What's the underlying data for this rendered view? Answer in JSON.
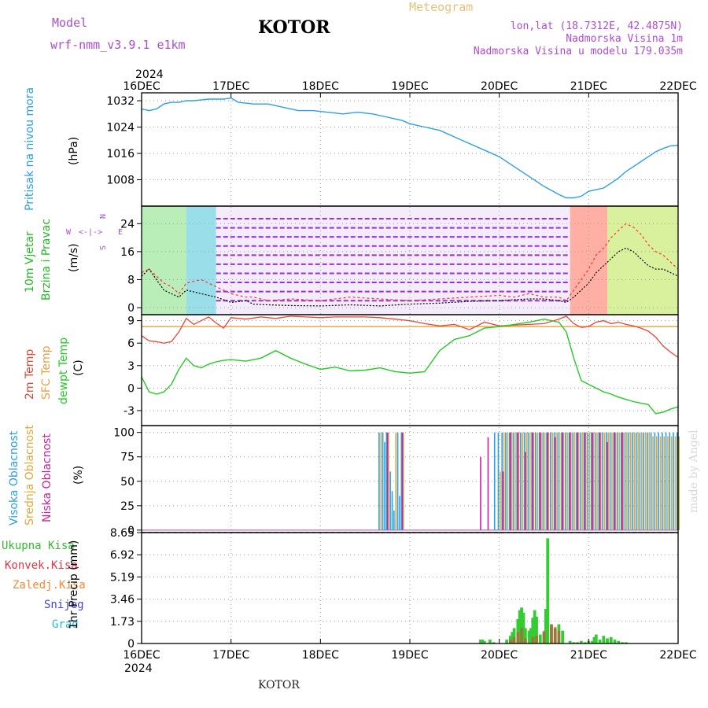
{
  "header": {
    "model_label": "Model",
    "model_name": "wrf-nmm_v3.9.1 e1km",
    "title": "KOTOR",
    "meteogram": "Meteogram",
    "lonlat": "lon,lat (18.7312E, 42.4875N)",
    "elevation": "Nadmorska Visina 1m",
    "model_elevation": "Nadmorska Visina u modelu 179.035m"
  },
  "footer": {
    "station": "KOTOR",
    "credit": "made by Angel"
  },
  "time_axis": {
    "year_top": "2024",
    "year_bottom": "2024",
    "labels": [
      "16DEC",
      "17DEC",
      "18DEC",
      "19DEC",
      "20DEC",
      "21DEC",
      "22DEC"
    ]
  },
  "panels": {
    "pressure": {
      "label": "Pritisak na nivou mora",
      "unit": "(hPa)"
    },
    "wind": {
      "label1": "10m Vjetar",
      "label2": "Brzina i Pravac",
      "unit": "(m/s)",
      "compass": {
        "n": "N",
        "s": "S",
        "e": "E",
        "w": "W"
      }
    },
    "temp": {
      "label1": "2m Temp",
      "label2": "SFC Temp",
      "label3": "dewpt Temp",
      "unit": "(C)"
    },
    "cloud": {
      "label1": "Visoka Oblacnost",
      "label2": "Srednja Oblacnost",
      "label3": "Niska Oblacnost",
      "unit": "(%)"
    },
    "precip": {
      "unit": "1hr Precip (mm)",
      "legend": [
        "Ukupna Kisa",
        "Konvek.Kisa",
        "Zaledj.Kisa",
        "Snijeg",
        "Grad"
      ]
    }
  },
  "colors": {
    "pressure": "#2aa0e8",
    "wind_speed": "#000000",
    "gust": "#ff3030",
    "temp2m": "#ee4433",
    "sfc": "#e8a040",
    "dewpt": "#22cc22",
    "high_cloud": "#2aa0e8",
    "mid_cloud": "#e0a838",
    "low_cloud": "#d020a0",
    "rain": "#33cc33",
    "conv": "#ee3344",
    "frz": "#ff8833",
    "snow": "#4444dd",
    "hail": "#22bbcc",
    "label_pressure": "#2aa0e8",
    "label_wind": "#22bb22",
    "purple": "#b04ad8"
  },
  "chart_data": [
    {
      "type": "line",
      "title": "Pritisak na nivou mora",
      "ylabel": "(hPa)",
      "yticks": [
        1008,
        1016,
        1024,
        1032
      ],
      "ylim": [
        1000,
        1034.4
      ],
      "xlim_hours": [
        0,
        144
      ],
      "series": [
        {
          "x": [
            0,
            2,
            4,
            6,
            8,
            10,
            12,
            14,
            18,
            22,
            24,
            26,
            30,
            34,
            38,
            42,
            46,
            50,
            54,
            58,
            62,
            66,
            70,
            72,
            76,
            80,
            84,
            88,
            92,
            96,
            100,
            104,
            108,
            112,
            114,
            116,
            118,
            120,
            122,
            124,
            126,
            128,
            130,
            132,
            134,
            136,
            138,
            140,
            142,
            144
          ],
          "y": [
            1029.5,
            1029,
            1029.5,
            1031,
            1031.5,
            1031.5,
            1032,
            1032,
            1032.5,
            1032.5,
            1032.8,
            1031.5,
            1031,
            1031,
            1030,
            1029,
            1029,
            1028.5,
            1028,
            1028.5,
            1028,
            1027,
            1026,
            1025,
            1024,
            1023,
            1021,
            1019,
            1017,
            1015,
            1012,
            1009,
            1006,
            1003.5,
            1002.5,
            1002.5,
            1003,
            1004.5,
            1005,
            1005.5,
            1007,
            1008.5,
            1010.5,
            1012,
            1013.5,
            1015,
            1016.5,
            1017.5,
            1018.3,
            1018.5
          ]
        }
      ]
    },
    {
      "type": "line",
      "title": "10m Vjetar Brzina i Pravac",
      "ylabel": "(m/s)",
      "yticks": [
        0,
        8,
        16,
        24
      ],
      "ylim": [
        -2,
        29
      ],
      "series": [
        {
          "x": [
            0,
            2,
            4,
            6,
            8,
            10,
            12,
            16,
            20,
            24,
            28,
            30,
            34,
            40,
            48,
            56,
            64,
            72,
            80,
            88,
            96,
            100,
            104,
            108,
            112,
            114,
            116,
            118,
            120,
            122,
            124,
            126,
            128,
            130,
            132,
            134,
            136,
            138,
            140,
            142,
            144
          ],
          "y": [
            9,
            11,
            8,
            5,
            4,
            3,
            5,
            4,
            3,
            1.5,
            2,
            1,
            0.8,
            0.6,
            0.5,
            0.8,
            0.5,
            1,
            1.3,
            1.8,
            2,
            2.3,
            2.5,
            2.5,
            2,
            1.5,
            3,
            5,
            7,
            10,
            12,
            14,
            16,
            17,
            16,
            14,
            12,
            11,
            11,
            10,
            9
          ]
        },
        {
          "x": [
            0,
            2,
            4,
            6,
            8,
            10,
            12,
            16,
            20,
            24,
            28,
            30,
            34,
            40,
            48,
            56,
            64,
            72,
            80,
            88,
            96,
            100,
            104,
            108,
            112,
            114,
            116,
            118,
            120,
            122,
            124,
            126,
            128,
            130,
            132,
            134,
            136,
            138,
            140,
            142,
            144
          ],
          "y": [
            10,
            11,
            9,
            7,
            6,
            4,
            7,
            8,
            6,
            4,
            3,
            3,
            2,
            2.5,
            2,
            3,
            2.5,
            2,
            2.5,
            3,
            3.5,
            3,
            4,
            3,
            3,
            2,
            5,
            8,
            11,
            15,
            17,
            20,
            22,
            24,
            23,
            21,
            18,
            16,
            15,
            13,
            11
          ]
        }
      ]
    },
    {
      "type": "line",
      "title": "2m Temp / SFC Temp / dewpt Temp",
      "ylabel": "(C)",
      "yticks": [
        -3,
        0,
        3,
        6,
        9
      ],
      "ylim": [
        -5,
        9.8
      ],
      "series": [
        {
          "x": [
            0,
            2,
            4,
            6,
            8,
            10,
            12,
            14,
            16,
            18,
            20,
            22,
            24,
            28,
            32,
            36,
            40,
            44,
            48,
            52,
            56,
            60,
            64,
            68,
            72,
            76,
            80,
            84,
            88,
            92,
            96,
            100,
            104,
            108,
            112,
            114,
            116,
            118,
            120,
            122,
            124,
            126,
            128,
            130,
            132,
            134,
            136,
            138,
            140,
            142,
            144
          ],
          "y": [
            7,
            6.3,
            6.2,
            6,
            6.2,
            7.5,
            9.3,
            8.5,
            9,
            9.5,
            8.7,
            8,
            9.4,
            9.2,
            9.5,
            9.3,
            9.6,
            9.5,
            9.4,
            9.5,
            9.5,
            9.5,
            9.4,
            9.2,
            9,
            8.6,
            8.3,
            8.5,
            7.8,
            8.8,
            8.3,
            8.4,
            8.5,
            8.6,
            9.2,
            9.6,
            8.6,
            8.1,
            8.2,
            8.8,
            9,
            8.6,
            8.8,
            8.5,
            8.3,
            8,
            7.6,
            6.8,
            5.6,
            4.8,
            4.1
          ]
        },
        {
          "x": [
            0,
            144
          ],
          "y": [
            8.2,
            8.2
          ]
        },
        {
          "x": [
            0,
            2,
            4,
            6,
            8,
            10,
            12,
            14,
            16,
            18,
            20,
            22,
            24,
            28,
            32,
            36,
            40,
            44,
            48,
            52,
            56,
            60,
            64,
            68,
            72,
            76,
            80,
            84,
            88,
            92,
            96,
            100,
            104,
            108,
            112,
            114,
            116,
            118,
            120,
            122,
            124,
            126,
            128,
            130,
            132,
            134,
            136,
            138,
            140,
            142,
            144
          ],
          "y": [
            1.5,
            -0.5,
            -0.8,
            -0.5,
            0.5,
            2.5,
            4,
            3,
            2.7,
            3.2,
            3.5,
            3.7,
            3.8,
            3.6,
            4,
            5,
            4,
            3.2,
            2.5,
            2.8,
            2.3,
            2.4,
            2.7,
            2.2,
            2,
            2.2,
            5,
            6.5,
            7,
            8,
            8.2,
            8.5,
            8.8,
            9.2,
            8.8,
            7.5,
            4,
            1,
            0.5,
            0,
            -0.5,
            -0.8,
            -1.2,
            -1.5,
            -1.8,
            -2,
            -2.2,
            -3.4,
            -3.2,
            -2.8,
            -2.5
          ]
        }
      ]
    },
    {
      "type": "bar",
      "title": "Oblacnost",
      "ylabel": "(%)",
      "yticks": [
        0,
        25,
        50,
        75,
        100
      ],
      "ylim": [
        0,
        100
      ],
      "series": [
        {
          "name": "Visoka Oblacnost",
          "x": [
            64,
            64.5,
            65,
            65.5,
            66,
            66.5,
            67,
            67.5,
            68,
            68.5,
            69,
            69.5,
            70,
            95,
            96,
            97,
            98,
            99,
            100,
            101,
            102,
            103,
            104,
            105,
            106,
            107,
            108,
            109,
            110,
            111,
            112,
            113,
            114,
            115,
            116,
            117,
            118,
            119,
            120,
            121,
            122,
            123,
            124,
            125,
            126,
            127,
            128,
            129,
            130,
            131,
            132,
            133,
            134,
            135,
            136,
            137,
            138,
            139,
            140,
            141,
            142,
            143,
            144
          ],
          "values": [
            100,
            100,
            100,
            90,
            100,
            70,
            60,
            40,
            20,
            10,
            100,
            35,
            100,
            100,
            100,
            100,
            100,
            100,
            100,
            100,
            100,
            100,
            100,
            100,
            100,
            100,
            100,
            100,
            100,
            100,
            100,
            100,
            100,
            100,
            100,
            100,
            100,
            100,
            100,
            100,
            100,
            100,
            100,
            100,
            100,
            100,
            100,
            100,
            100,
            100,
            100,
            100,
            100,
            100,
            100,
            100,
            100,
            100,
            100,
            100,
            100,
            100,
            100
          ]
        },
        {
          "name": "Srednja Oblacnost",
          "x": [
            64,
            66,
            68,
            70,
            96,
            97,
            98,
            99,
            100,
            101,
            102,
            103,
            104,
            105,
            106,
            107,
            108,
            109,
            110,
            111,
            112,
            113,
            114,
            115,
            116,
            117,
            118,
            119,
            120,
            121,
            122,
            123,
            124,
            125,
            126,
            127,
            128,
            129,
            130,
            131,
            132,
            133,
            134,
            135,
            136,
            137,
            138,
            139,
            140,
            141,
            142,
            143,
            144
          ],
          "values": [
            100,
            100,
            100,
            100,
            60,
            100,
            100,
            100,
            100,
            100,
            100,
            100,
            100,
            100,
            100,
            100,
            100,
            100,
            100,
            100,
            100,
            100,
            100,
            100,
            100,
            100,
            100,
            100,
            100,
            100,
            100,
            100,
            100,
            100,
            100,
            100,
            100,
            100,
            100,
            100,
            100,
            100,
            100,
            100,
            100,
            96,
            96,
            96,
            96,
            96,
            96,
            96,
            96
          ]
        },
        {
          "name": "Niska Oblacnost",
          "x": [
            66,
            70,
            91,
            93,
            97,
            99,
            101,
            103,
            105,
            107,
            109,
            111,
            113,
            115,
            117,
            119,
            121,
            123,
            125,
            127,
            129
          ],
          "values": [
            100,
            100,
            75,
            95,
            60,
            100,
            100,
            80,
            100,
            100,
            100,
            95,
            100,
            100,
            100,
            100,
            100,
            100,
            90,
            100,
            100
          ]
        }
      ]
    },
    {
      "type": "bar",
      "title": "1hr Precip",
      "ylabel": "1hr Precip (mm)",
      "yticks": [
        0,
        1.73,
        3.46,
        5.19,
        6.92,
        8.65
      ],
      "ylim": [
        0,
        8.65
      ],
      "series": [
        {
          "name": "Ukupna Kisa",
          "x": [
            91,
            91.5,
            92,
            93.5,
            94.5,
            98,
            99,
            99.5,
            100,
            101,
            101.5,
            102,
            102.5,
            103,
            104,
            104.5,
            105,
            105.5,
            106,
            107,
            108,
            108.5,
            109,
            110,
            111,
            112,
            113,
            115,
            116,
            117,
            118,
            119,
            120,
            121,
            121.5,
            122,
            123,
            124,
            125,
            126,
            127,
            128,
            129,
            130
          ],
          "values": [
            0.3,
            0.3,
            0.2,
            0.3,
            0.1,
            0.3,
            0.6,
            0.9,
            1.2,
            1.9,
            2.6,
            2.8,
            2.4,
            1.2,
            1.0,
            1.2,
            2.0,
            2.6,
            2.1,
            0.7,
            0.9,
            2.7,
            8.2,
            1.5,
            1.2,
            1.5,
            1.0,
            0.2,
            0.1,
            0.1,
            0.2,
            0.1,
            0.2,
            0.2,
            0.5,
            0.7,
            0.3,
            0.6,
            0.4,
            0.5,
            0.3,
            0.2,
            0.1,
            0.1
          ]
        },
        {
          "name": "Konvek.Kisa",
          "x": [
            99,
            100,
            101,
            102,
            103,
            105,
            106,
            108,
            110,
            111,
            112
          ],
          "values": [
            0.3,
            0.5,
            0.9,
            1.2,
            0.4,
            0.5,
            0.6,
            1.0,
            1.5,
            1.3,
            1.0
          ]
        }
      ]
    }
  ]
}
